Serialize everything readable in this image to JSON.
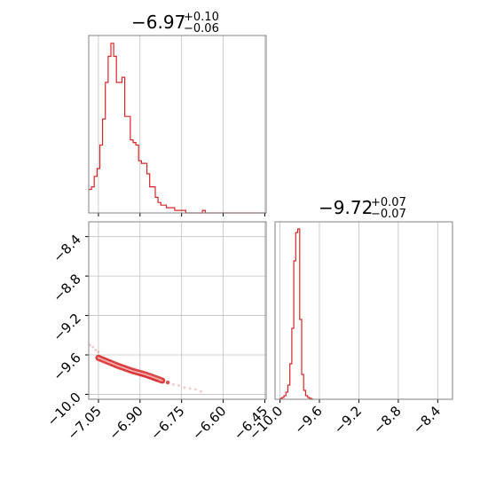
{
  "chart_data": [
    {
      "type": "histogram",
      "panel": "top-left",
      "title": {
        "main": "−6.97",
        "sup": "+0.10",
        "sub": "−0.06"
      },
      "xlim": [
        -7.085,
        -6.445
      ],
      "xticks": [
        "−7.05",
        "−6.90",
        "−6.75",
        "−6.60",
        "−6.45"
      ],
      "tick_values": [
        -7.05,
        -6.9,
        -6.75,
        -6.6,
        -6.45
      ],
      "grid": true,
      "color": "#d62728",
      "bin_width": 0.01,
      "bin_start": -7.085,
      "counts": [
        9,
        10,
        14,
        17,
        26,
        36,
        50,
        60,
        65,
        60,
        50,
        50,
        52,
        37,
        37,
        28,
        27,
        26,
        20,
        19,
        19,
        15,
        10,
        10,
        6,
        4,
        3,
        3,
        2,
        2,
        2,
        1,
        1,
        1,
        1,
        0,
        0,
        0,
        0,
        0,
        0,
        1,
        0,
        0,
        0,
        0,
        0,
        0,
        0,
        0,
        0,
        0,
        0,
        0,
        0,
        0,
        0,
        0,
        0,
        0,
        0,
        0,
        0,
        0
      ],
      "ylim": [
        0,
        68
      ]
    },
    {
      "type": "histogram",
      "panel": "bottom-right",
      "title": {
        "main": "−9.72",
        "sup": "+0.07",
        "sub": "−0.07"
      },
      "xlim": [
        -10.05,
        -8.25
      ],
      "xticks": [
        "−10.0",
        "−9.6",
        "−9.2",
        "−8.8",
        "−8.4"
      ],
      "tick_values": [
        -10.0,
        -9.6,
        -9.2,
        -8.8,
        -8.4
      ],
      "grid": true,
      "color": "#d62728",
      "bin_width": 0.02,
      "bin_start": -10.0,
      "counts": [
        0.5,
        1,
        2,
        4,
        8,
        20,
        40,
        78,
        94,
        96,
        45,
        14,
        5,
        2,
        1,
        0.5,
        0
      ],
      "ylim": [
        0,
        100
      ]
    },
    {
      "type": "scatter",
      "panel": "bottom-left",
      "xlim": [
        -7.085,
        -6.445
      ],
      "ylim": [
        -10.05,
        -8.25
      ],
      "xticks": [
        "−7.05",
        "−6.90",
        "−6.75",
        "−6.60",
        "−6.45"
      ],
      "tick_values_x": [
        -7.05,
        -6.9,
        -6.75,
        -6.6,
        -6.45
      ],
      "yticks": [
        "−8.4",
        "−8.8",
        "−9.2",
        "−9.6",
        "−10.0"
      ],
      "tick_values_y": [
        -8.4,
        -8.8,
        -9.2,
        -9.6,
        -10.0
      ],
      "grid": true,
      "color": "#d62728",
      "points": [
        [
          -7.05,
          -9.62
        ],
        [
          -7.04,
          -9.64
        ],
        [
          -7.03,
          -9.65
        ],
        [
          -7.02,
          -9.66
        ],
        [
          -7.01,
          -9.67
        ],
        [
          -7.0,
          -9.69
        ],
        [
          -6.99,
          -9.7
        ],
        [
          -6.98,
          -9.71
        ],
        [
          -6.97,
          -9.72
        ],
        [
          -6.96,
          -9.73
        ],
        [
          -6.95,
          -9.74
        ],
        [
          -6.94,
          -9.75
        ],
        [
          -6.93,
          -9.76
        ],
        [
          -6.92,
          -9.77
        ],
        [
          -6.91,
          -9.78
        ],
        [
          -6.9,
          -9.79
        ],
        [
          -6.89,
          -9.8
        ],
        [
          -6.88,
          -9.81
        ],
        [
          -6.87,
          -9.82
        ],
        [
          -6.86,
          -9.83
        ],
        [
          -6.85,
          -9.84
        ],
        [
          -6.84,
          -9.85
        ],
        [
          -6.82,
          -9.86
        ],
        [
          -6.8,
          -9.88
        ],
        [
          -6.78,
          -9.9
        ],
        [
          -6.76,
          -9.91
        ],
        [
          -6.74,
          -9.93
        ],
        [
          -6.72,
          -9.94
        ],
        [
          -6.7,
          -9.95
        ],
        [
          -6.68,
          -9.97
        ],
        [
          -7.07,
          -9.52
        ],
        [
          -7.06,
          -9.55
        ],
        [
          -7.08,
          -9.5
        ],
        [
          -7.05,
          -9.57
        ]
      ],
      "contour_band": [
        [
          -7.05,
          -9.63
        ],
        [
          -6.98,
          -9.71
        ],
        [
          -6.93,
          -9.76
        ],
        [
          -6.88,
          -9.8
        ],
        [
          -6.82,
          -9.86
        ]
      ]
    }
  ]
}
